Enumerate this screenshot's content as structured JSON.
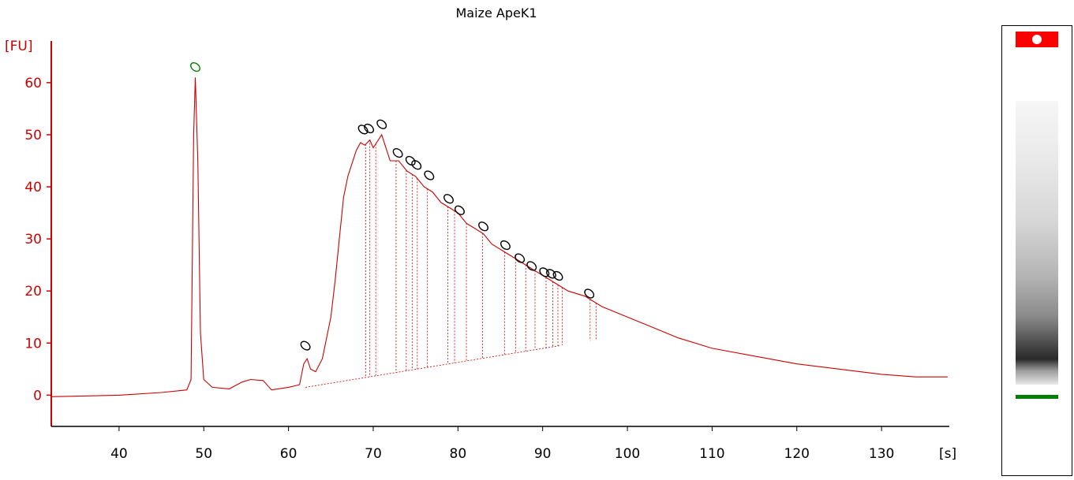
{
  "chart_data": {
    "type": "line",
    "title": "Maize ApeK1",
    "ylabel": "[FU]",
    "xlabel": "[s]",
    "xlim": [
      32,
      138
    ],
    "ylim": [
      -6,
      68
    ],
    "x_ticks": [
      40,
      50,
      60,
      70,
      80,
      90,
      100,
      110,
      120,
      130
    ],
    "y_ticks": [
      0,
      10,
      20,
      30,
      40,
      50,
      60
    ],
    "grid": false,
    "series": [
      {
        "color": "#cc0000",
        "points": [
          [
            32,
            -0.3
          ],
          [
            40,
            0
          ],
          [
            45,
            0.5
          ],
          [
            48,
            1
          ],
          [
            48.5,
            3
          ],
          [
            48.8,
            50
          ],
          [
            49.0,
            61
          ],
          [
            49.3,
            45
          ],
          [
            49.6,
            12
          ],
          [
            50.0,
            3
          ],
          [
            51,
            1.5
          ],
          [
            53,
            1.2
          ],
          [
            54.5,
            2.5
          ],
          [
            55.5,
            3
          ],
          [
            57,
            2.8
          ],
          [
            58,
            1
          ],
          [
            60,
            1.5
          ],
          [
            61.3,
            2
          ],
          [
            61.8,
            6
          ],
          [
            62.2,
            7
          ],
          [
            62.6,
            5
          ],
          [
            63.2,
            4.5
          ],
          [
            64,
            7
          ],
          [
            65,
            15
          ],
          [
            65.5,
            22
          ],
          [
            66,
            30
          ],
          [
            66.5,
            38
          ],
          [
            67,
            42
          ],
          [
            68,
            47
          ],
          [
            68.5,
            48.5
          ],
          [
            69,
            48
          ],
          [
            69.6,
            49
          ],
          [
            70,
            47.5
          ],
          [
            71,
            50
          ],
          [
            72,
            45
          ],
          [
            73,
            45
          ],
          [
            74,
            43
          ],
          [
            75,
            42
          ],
          [
            76,
            40
          ],
          [
            77,
            39
          ],
          [
            78,
            37
          ],
          [
            79,
            36
          ],
          [
            80,
            35
          ],
          [
            81,
            33
          ],
          [
            82,
            32
          ],
          [
            83,
            31
          ],
          [
            84,
            29
          ],
          [
            85,
            28
          ],
          [
            86,
            27
          ],
          [
            87,
            26
          ],
          [
            88,
            25
          ],
          [
            89,
            24
          ],
          [
            90,
            23
          ],
          [
            91,
            22
          ],
          [
            92,
            21
          ],
          [
            93,
            20
          ],
          [
            95,
            19
          ],
          [
            97,
            17
          ],
          [
            100,
            15
          ],
          [
            103,
            13
          ],
          [
            106,
            11
          ],
          [
            110,
            9
          ],
          [
            115,
            7.5
          ],
          [
            120,
            6
          ],
          [
            125,
            5
          ],
          [
            130,
            4
          ],
          [
            134,
            3.5
          ],
          [
            137.8,
            3.5
          ]
        ]
      }
    ],
    "baseline": {
      "color": "#cc0000",
      "points": [
        [
          62,
          1.5
        ],
        [
          92,
          9.5
        ]
      ]
    },
    "peak_markers": [
      {
        "x": 49.0,
        "y": 63.0,
        "color": "#008000"
      },
      {
        "x": 62.0,
        "y": 9.5,
        "color": "#000000"
      },
      {
        "x": 68.8,
        "y": 51.0,
        "color": "#000000"
      },
      {
        "x": 69.5,
        "y": 51.2,
        "color": "#000000"
      },
      {
        "x": 71.0,
        "y": 52.0,
        "color": "#000000"
      },
      {
        "x": 72.9,
        "y": 46.5,
        "color": "#000000"
      },
      {
        "x": 74.4,
        "y": 45.0,
        "color": "#000000"
      },
      {
        "x": 75.1,
        "y": 44.2,
        "color": "#000000"
      },
      {
        "x": 76.6,
        "y": 42.2,
        "color": "#000000"
      },
      {
        "x": 78.9,
        "y": 37.7,
        "color": "#000000"
      },
      {
        "x": 80.2,
        "y": 35.5,
        "color": "#000000"
      },
      {
        "x": 83.0,
        "y": 32.4,
        "color": "#000000"
      },
      {
        "x": 85.6,
        "y": 28.8,
        "color": "#000000"
      },
      {
        "x": 87.3,
        "y": 26.3,
        "color": "#000000"
      },
      {
        "x": 88.7,
        "y": 24.8,
        "color": "#000000"
      },
      {
        "x": 90.2,
        "y": 23.6,
        "color": "#000000"
      },
      {
        "x": 91.0,
        "y": 23.3,
        "color": "#000000"
      },
      {
        "x": 91.8,
        "y": 22.9,
        "color": "#000000"
      },
      {
        "x": 95.5,
        "y": 19.5,
        "color": "#000000"
      }
    ],
    "peak_dividers": [
      69.1,
      69.6,
      70.3,
      72.7,
      73.9,
      74.6,
      75.2,
      76.4,
      78.8,
      79.6,
      81.0,
      82.9,
      85.5,
      86.8,
      88.0,
      89.1,
      90.4,
      91.2,
      91.8,
      92.3,
      95.6,
      96.3
    ]
  },
  "gel": {
    "top_band_color": "#ff0000",
    "bottom_marker_color": "#008000"
  }
}
